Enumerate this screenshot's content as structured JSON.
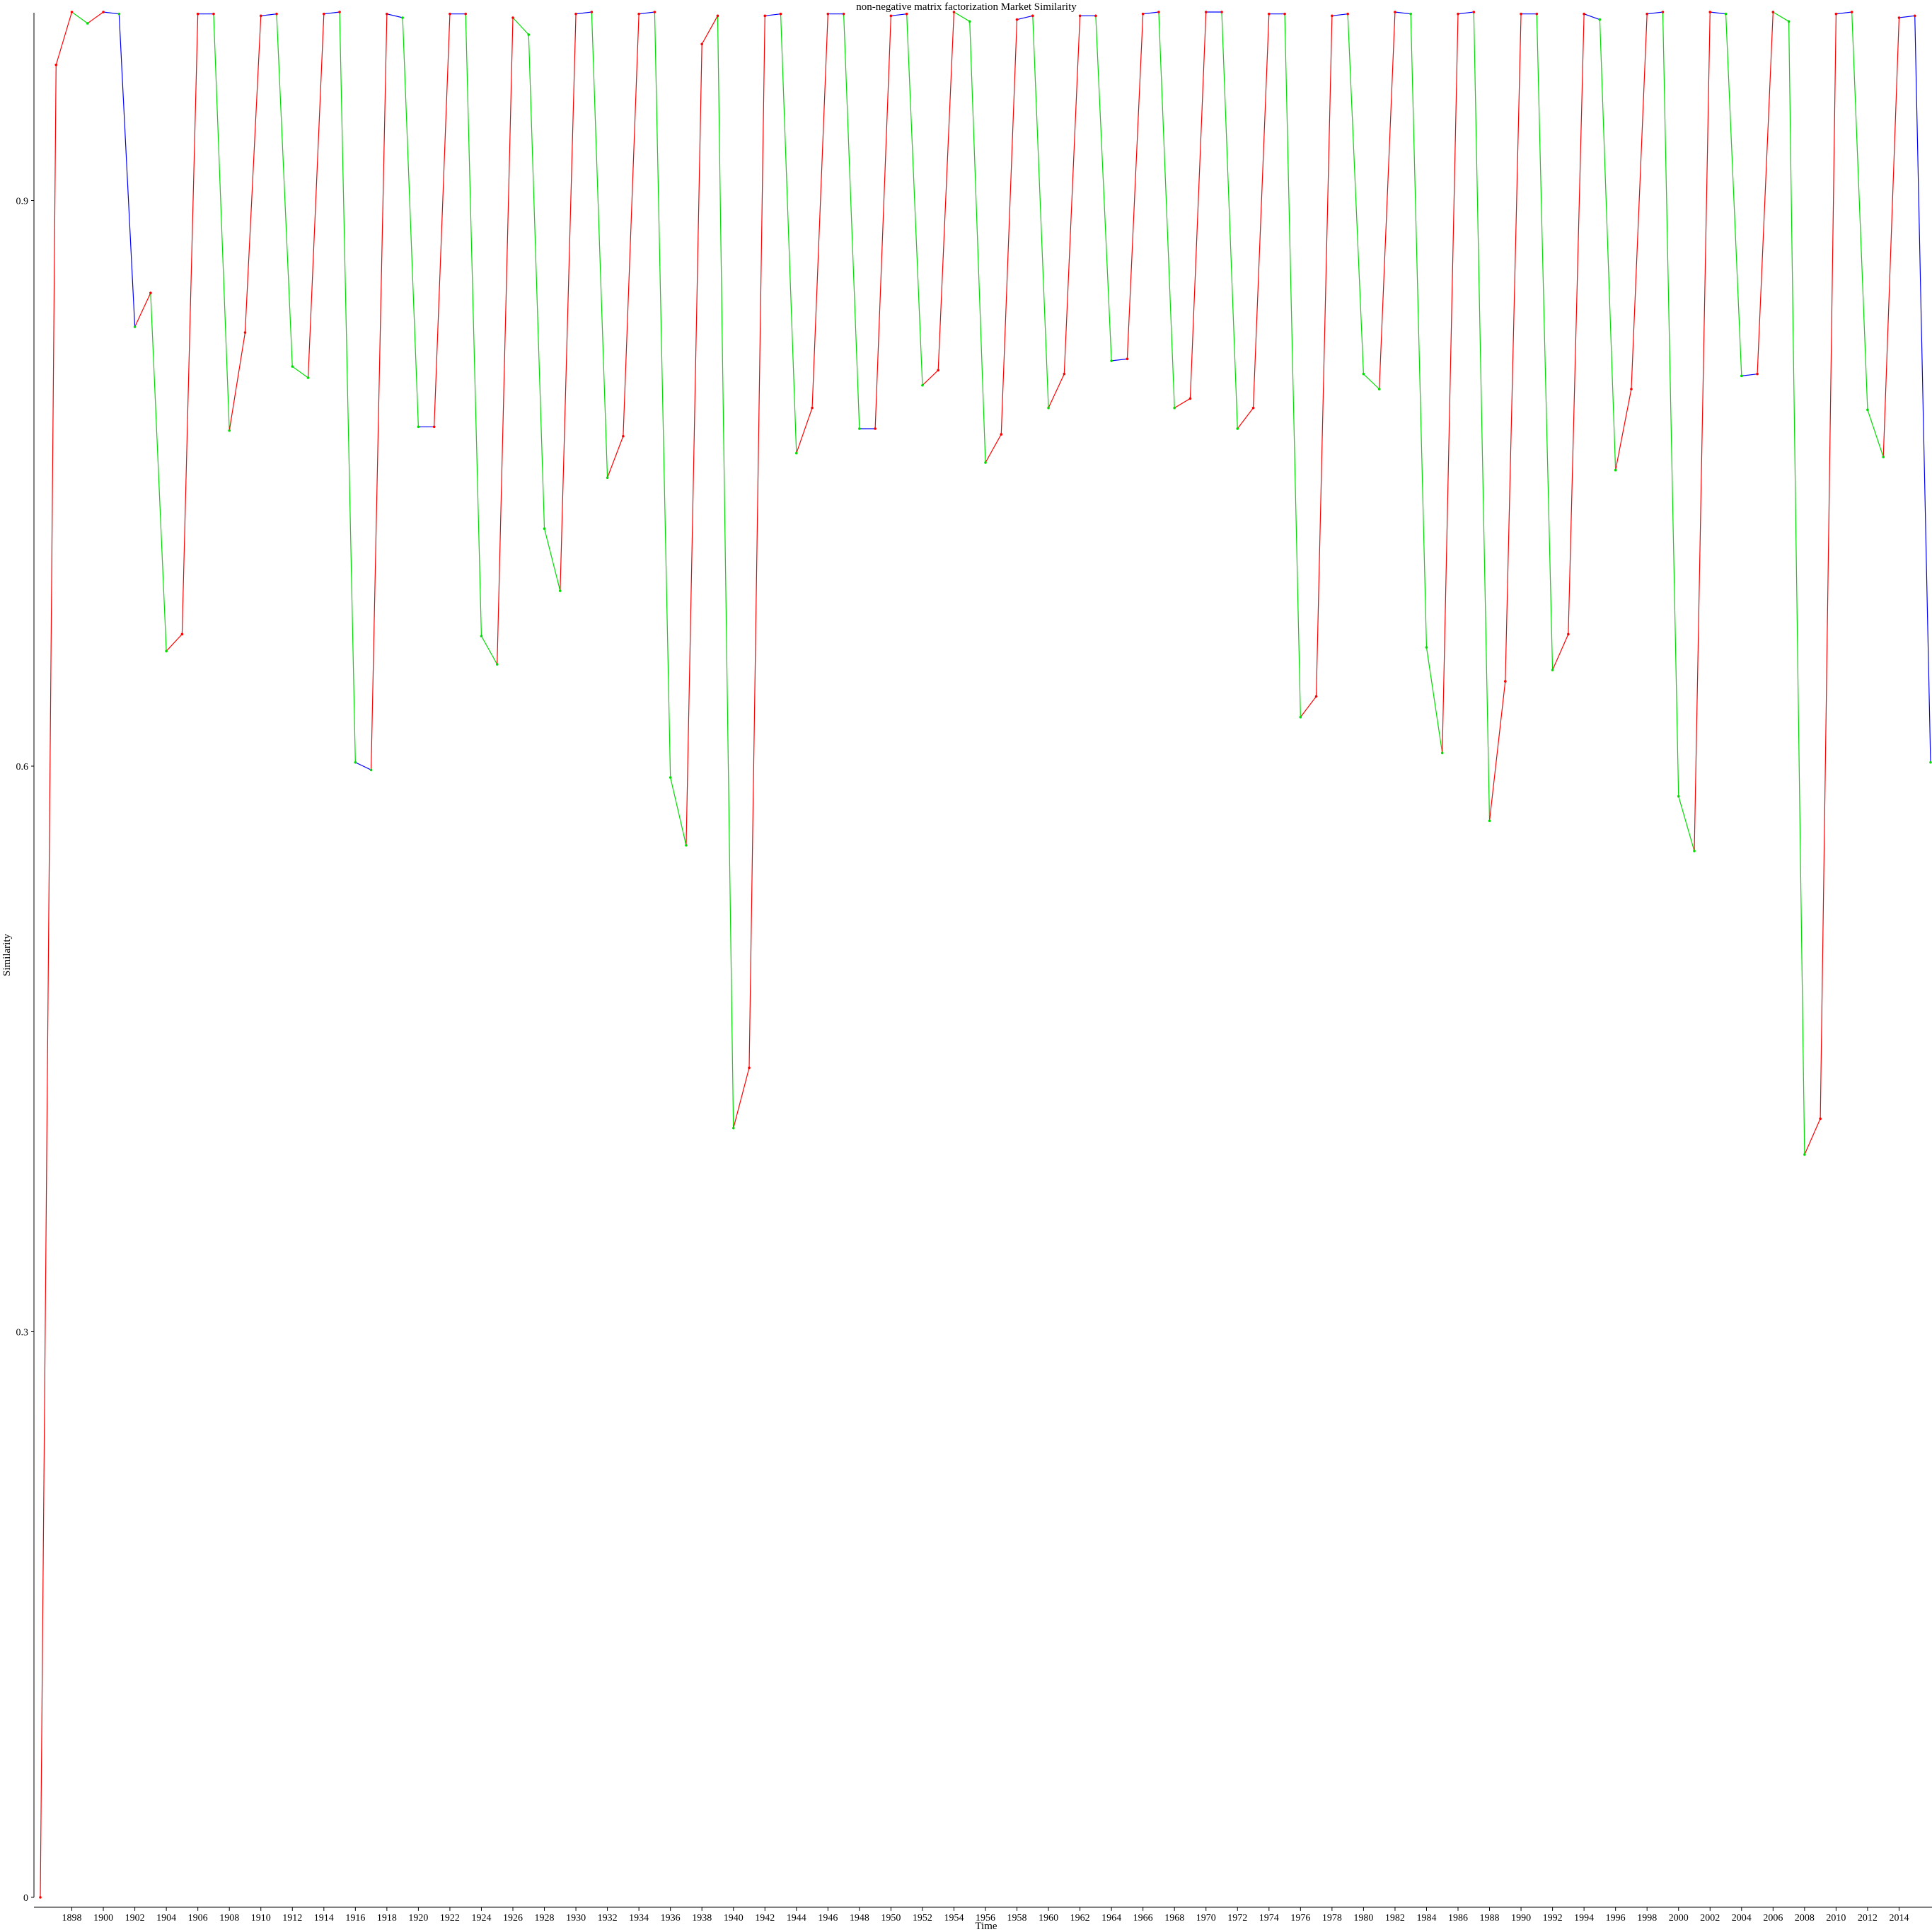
{
  "chart_data": {
    "type": "line",
    "title": "non-negative matrix factorization Market Similarity",
    "xlabel": "Time",
    "ylabel": "Similarity",
    "ylim": [
      0,
      1.0
    ],
    "yticks": [
      0,
      0.3,
      0.6,
      0.9
    ],
    "ytick_labels": [
      "0",
      "0.3",
      "0.6",
      "0.9"
    ],
    "xlim": [
      1896,
      2016
    ],
    "xticks": [
      1898,
      1900,
      1902,
      1904,
      1906,
      1908,
      1910,
      1912,
      1914,
      1916,
      1918,
      1920,
      1922,
      1924,
      1926,
      1928,
      1930,
      1932,
      1934,
      1936,
      1938,
      1940,
      1942,
      1944,
      1946,
      1948,
      1950,
      1952,
      1954,
      1956,
      1958,
      1960,
      1962,
      1964,
      1966,
      1968,
      1970,
      1972,
      1974,
      1976,
      1978,
      1980,
      1982,
      1984,
      1986,
      1988,
      1990,
      1992,
      1994,
      1996,
      1998,
      2000,
      2002,
      2004,
      2006,
      2008,
      2010,
      2012,
      2014
    ],
    "xtick_labels": [
      "1898",
      "1900",
      "1902",
      "1904",
      "1906",
      "1908",
      "1910",
      "1912",
      "1914",
      "1916",
      "1918",
      "1920",
      "1922",
      "1924",
      "1926",
      "1928",
      "1930",
      "1932",
      "1934",
      "1936",
      "1938",
      "1940",
      "1942",
      "1944",
      "1946",
      "1948",
      "1950",
      "1952",
      "1954",
      "1956",
      "1958",
      "1960",
      "1962",
      "1964",
      "1966",
      "1968",
      "1970",
      "1972",
      "1974",
      "1976",
      "1978",
      "1980",
      "1982",
      "1984",
      "1986",
      "1988",
      "1990",
      "1992",
      "1994",
      "1996",
      "1998",
      "2000",
      "2002",
      "2004",
      "2006",
      "2008",
      "2010",
      "2012",
      "2014"
    ],
    "segment_colors": {
      "rise": "#ff0000",
      "fall": "#00dd00",
      "other": "#0000ff"
    },
    "grid": false,
    "x": [
      1896,
      1897,
      1898,
      1899,
      1900,
      1901,
      1902,
      1903,
      1904,
      1905,
      1906,
      1907,
      1908,
      1909,
      1910,
      1911,
      1912,
      1913,
      1914,
      1915,
      1916,
      1917,
      1918,
      1919,
      1920,
      1921,
      1922,
      1923,
      1924,
      1925,
      1926,
      1927,
      1928,
      1929,
      1930,
      1931,
      1932,
      1933,
      1934,
      1935,
      1936,
      1937,
      1938,
      1939,
      1940,
      1941,
      1942,
      1943,
      1944,
      1945,
      1946,
      1947,
      1948,
      1949,
      1950,
      1951,
      1952,
      1953,
      1954,
      1955,
      1956,
      1957,
      1958,
      1959,
      1960,
      1961,
      1962,
      1963,
      1964,
      1965,
      1966,
      1967,
      1968,
      1969,
      1970,
      1971,
      1972,
      1973,
      1974,
      1975,
      1976,
      1977,
      1978,
      1979,
      1980,
      1981,
      1982,
      1983,
      1984,
      1985,
      1986,
      1987,
      1988,
      1989,
      1990,
      1991,
      1992,
      1993,
      1994,
      1995,
      1996,
      1997,
      1998,
      1999,
      2000,
      2001,
      2002,
      2003,
      2004,
      2005,
      2006,
      2007,
      2008,
      2009,
      2010,
      2011,
      2012,
      2013,
      2014,
      2015,
      2016
    ],
    "values": [
      0.0,
      0.972,
      1.0,
      0.994,
      1.0,
      0.999,
      0.833,
      0.851,
      0.661,
      0.67,
      0.999,
      0.999,
      0.778,
      0.83,
      0.998,
      0.999,
      0.812,
      0.806,
      0.999,
      1.0,
      0.602,
      0.598,
      0.999,
      0.997,
      0.78,
      0.78,
      0.999,
      0.999,
      0.669,
      0.654,
      0.997,
      0.988,
      0.726,
      0.693,
      0.999,
      1.0,
      0.753,
      0.775,
      0.999,
      1.0,
      0.594,
      0.558,
      0.983,
      0.998,
      0.408,
      0.44,
      0.998,
      0.999,
      0.766,
      0.79,
      0.999,
      0.999,
      0.779,
      0.779,
      0.998,
      0.999,
      0.802,
      0.81,
      1.0,
      0.995,
      0.761,
      0.776,
      0.996,
      0.998,
      0.79,
      0.808,
      0.998,
      0.998,
      0.815,
      0.816,
      0.999,
      1.0,
      0.79,
      0.795,
      1.0,
      1.0,
      0.779,
      0.79,
      0.999,
      0.999,
      0.626,
      0.637,
      0.998,
      0.999,
      0.808,
      0.8,
      1.0,
      0.999,
      0.663,
      0.607,
      0.999,
      1.0,
      0.571,
      0.645,
      0.999,
      0.999,
      0.651,
      0.67,
      0.999,
      0.996,
      0.757,
      0.8,
      0.999,
      1.0,
      0.584,
      0.555,
      1.0,
      0.999,
      0.807,
      0.808,
      1.0,
      0.995,
      0.394,
      0.413,
      0.999,
      1.0,
      0.789,
      0.764,
      0.997,
      0.998,
      0.602
    ]
  }
}
